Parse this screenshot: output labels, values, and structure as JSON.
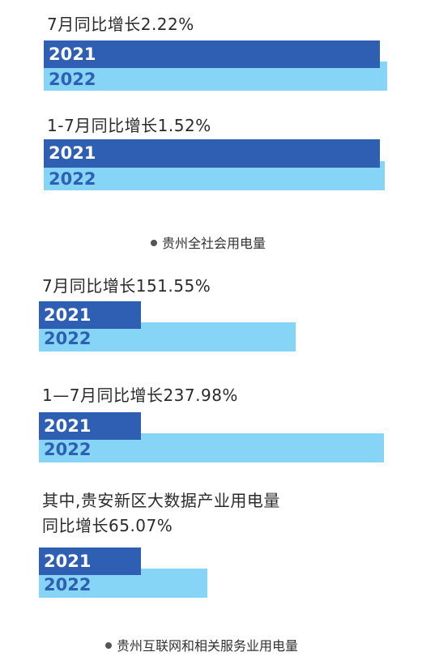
{
  "chart_data": [
    {
      "type": "bar",
      "title": "7月同比增长2.22%",
      "categories": [
        "2021",
        "2022"
      ],
      "values": [
        100,
        102.22
      ]
    },
    {
      "type": "bar",
      "title": "1-7月同比增长1.52%",
      "categories": [
        "2021",
        "2022"
      ],
      "values": [
        100,
        101.52
      ]
    },
    {
      "type": "bar",
      "title": "7月同比增长151.55%",
      "categories": [
        "2021",
        "2022"
      ],
      "values": [
        100,
        251.55
      ]
    },
    {
      "type": "bar",
      "title": "1—7月同比增长237.98%",
      "categories": [
        "2021",
        "2022"
      ],
      "values": [
        100,
        337.98
      ]
    },
    {
      "type": "bar",
      "title": "其中,贵安新区大数据产业用电量",
      "subtitle": "同比增长65.07%",
      "categories": [
        "2021",
        "2022"
      ],
      "values": [
        100,
        165.07
      ]
    }
  ],
  "captions": {
    "group1": "贵州全社会用电量",
    "group2": "贵州互联网和相关服务业用电量"
  }
}
